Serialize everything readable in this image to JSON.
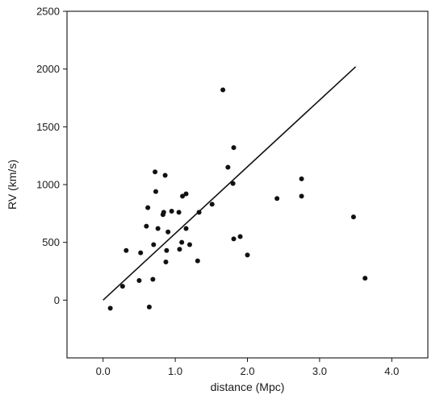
{
  "chart_data": {
    "type": "scatter",
    "title": "",
    "xlabel": "distance (Mpc)",
    "ylabel": "RV (km/s)",
    "xlim": [
      -0.5,
      4.5
    ],
    "ylim": [
      -500,
      2500
    ],
    "x_ticks": [
      0.0,
      1.0,
      2.0,
      3.0,
      4.0
    ],
    "x_tick_labels": [
      "0.0",
      "1.0",
      "2.0",
      "3.0",
      "4.0"
    ],
    "y_ticks": [
      0,
      500,
      1000,
      1500,
      2000,
      2500
    ],
    "y_tick_labels": [
      "0",
      "500",
      "1000",
      "1500",
      "2000",
      "2500"
    ],
    "grid": false,
    "legend": "none",
    "point_color": "#111111",
    "line_color": "#111111",
    "points": [
      {
        "x": 0.1,
        "y": -70
      },
      {
        "x": 0.27,
        "y": 120
      },
      {
        "x": 0.32,
        "y": 430
      },
      {
        "x": 0.5,
        "y": 170
      },
      {
        "x": 0.52,
        "y": 410
      },
      {
        "x": 0.6,
        "y": 640
      },
      {
        "x": 0.62,
        "y": 800
      },
      {
        "x": 0.64,
        "y": -60
      },
      {
        "x": 0.69,
        "y": 180
      },
      {
        "x": 0.7,
        "y": 480
      },
      {
        "x": 0.72,
        "y": 1110
      },
      {
        "x": 0.73,
        "y": 940
      },
      {
        "x": 0.76,
        "y": 620
      },
      {
        "x": 0.83,
        "y": 740
      },
      {
        "x": 0.84,
        "y": 760
      },
      {
        "x": 0.86,
        "y": 1080
      },
      {
        "x": 0.87,
        "y": 330
      },
      {
        "x": 0.88,
        "y": 430
      },
      {
        "x": 0.9,
        "y": 590
      },
      {
        "x": 0.95,
        "y": 770
      },
      {
        "x": 1.05,
        "y": 760
      },
      {
        "x": 1.06,
        "y": 440
      },
      {
        "x": 1.09,
        "y": 500
      },
      {
        "x": 1.1,
        "y": 900
      },
      {
        "x": 1.15,
        "y": 620
      },
      {
        "x": 1.15,
        "y": 920
      },
      {
        "x": 1.2,
        "y": 480
      },
      {
        "x": 1.31,
        "y": 340
      },
      {
        "x": 1.33,
        "y": 760
      },
      {
        "x": 1.51,
        "y": 830
      },
      {
        "x": 1.66,
        "y": 1820
      },
      {
        "x": 1.73,
        "y": 1150
      },
      {
        "x": 1.8,
        "y": 1010
      },
      {
        "x": 1.81,
        "y": 1320
      },
      {
        "x": 1.81,
        "y": 530
      },
      {
        "x": 1.9,
        "y": 550
      },
      {
        "x": 2.0,
        "y": 390
      },
      {
        "x": 2.41,
        "y": 880
      },
      {
        "x": 2.75,
        "y": 1050
      },
      {
        "x": 2.75,
        "y": 900
      },
      {
        "x": 3.47,
        "y": 720
      },
      {
        "x": 3.63,
        "y": 190
      }
    ],
    "fit_line": {
      "x": [
        0.0,
        3.5
      ],
      "y": [
        0,
        2020
      ]
    }
  }
}
